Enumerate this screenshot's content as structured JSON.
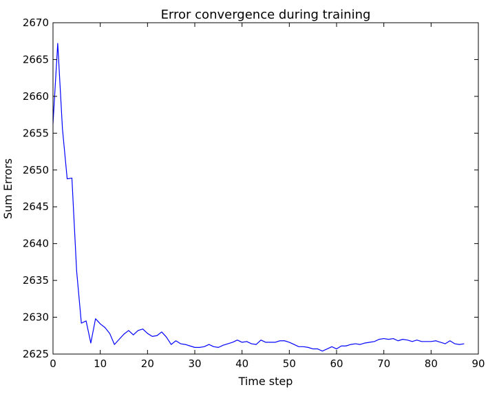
{
  "chart_data": {
    "type": "line",
    "title": "Error convergence during training",
    "xlabel": "Time step",
    "ylabel": "Sum Errors",
    "xlim": [
      0,
      90
    ],
    "ylim": [
      2625,
      2670
    ],
    "xticks": [
      0,
      10,
      20,
      30,
      40,
      50,
      60,
      70,
      80,
      90
    ],
    "yticks": [
      2625,
      2630,
      2635,
      2640,
      2645,
      2650,
      2655,
      2660,
      2665,
      2670
    ],
    "grid": false,
    "series": [
      {
        "name": "Sum Errors",
        "color": "#0000ff",
        "x": [
          0,
          1,
          2,
          3,
          4,
          5,
          6,
          7,
          8,
          9,
          10,
          11,
          12,
          13,
          14,
          15,
          16,
          17,
          18,
          19,
          20,
          21,
          22,
          23,
          24,
          25,
          26,
          27,
          28,
          29,
          30,
          31,
          32,
          33,
          34,
          35,
          36,
          37,
          38,
          39,
          40,
          41,
          42,
          43,
          44,
          45,
          46,
          47,
          48,
          49,
          50,
          51,
          52,
          53,
          54,
          55,
          56,
          57,
          58,
          59,
          60,
          61,
          62,
          63,
          64,
          65,
          66,
          67,
          68,
          69,
          70,
          71,
          72,
          73,
          74,
          75,
          76,
          77,
          78,
          79,
          80,
          81,
          82,
          83,
          84,
          85,
          86,
          87
        ],
        "values": [
          2656.3,
          2667.2,
          2655.6,
          2648.8,
          2648.9,
          2636.3,
          2629.2,
          2629.5,
          2626.5,
          2629.8,
          2629.1,
          2628.6,
          2627.8,
          2626.3,
          2627.0,
          2627.7,
          2628.2,
          2627.6,
          2628.2,
          2628.4,
          2627.8,
          2627.4,
          2627.5,
          2628.0,
          2627.3,
          2626.3,
          2626.8,
          2626.4,
          2626.3,
          2626.1,
          2625.9,
          2625.9,
          2626.0,
          2626.3,
          2626.0,
          2625.9,
          2626.2,
          2626.4,
          2626.6,
          2626.9,
          2626.6,
          2626.7,
          2626.4,
          2626.3,
          2626.9,
          2626.6,
          2626.6,
          2626.6,
          2626.8,
          2626.8,
          2626.6,
          2626.3,
          2626.0,
          2626.0,
          2625.9,
          2625.7,
          2625.7,
          2625.4,
          2625.7,
          2626.0,
          2625.7,
          2626.1,
          2626.1,
          2626.3,
          2626.4,
          2626.3,
          2626.5,
          2626.6,
          2626.7,
          2627.0,
          2627.1,
          2627.0,
          2627.1,
          2626.8,
          2627.0,
          2626.9,
          2626.7,
          2626.9,
          2626.7,
          2626.7,
          2626.7,
          2626.8,
          2626.6,
          2626.4,
          2626.8,
          2626.4,
          2626.3,
          2626.4
        ]
      }
    ]
  }
}
